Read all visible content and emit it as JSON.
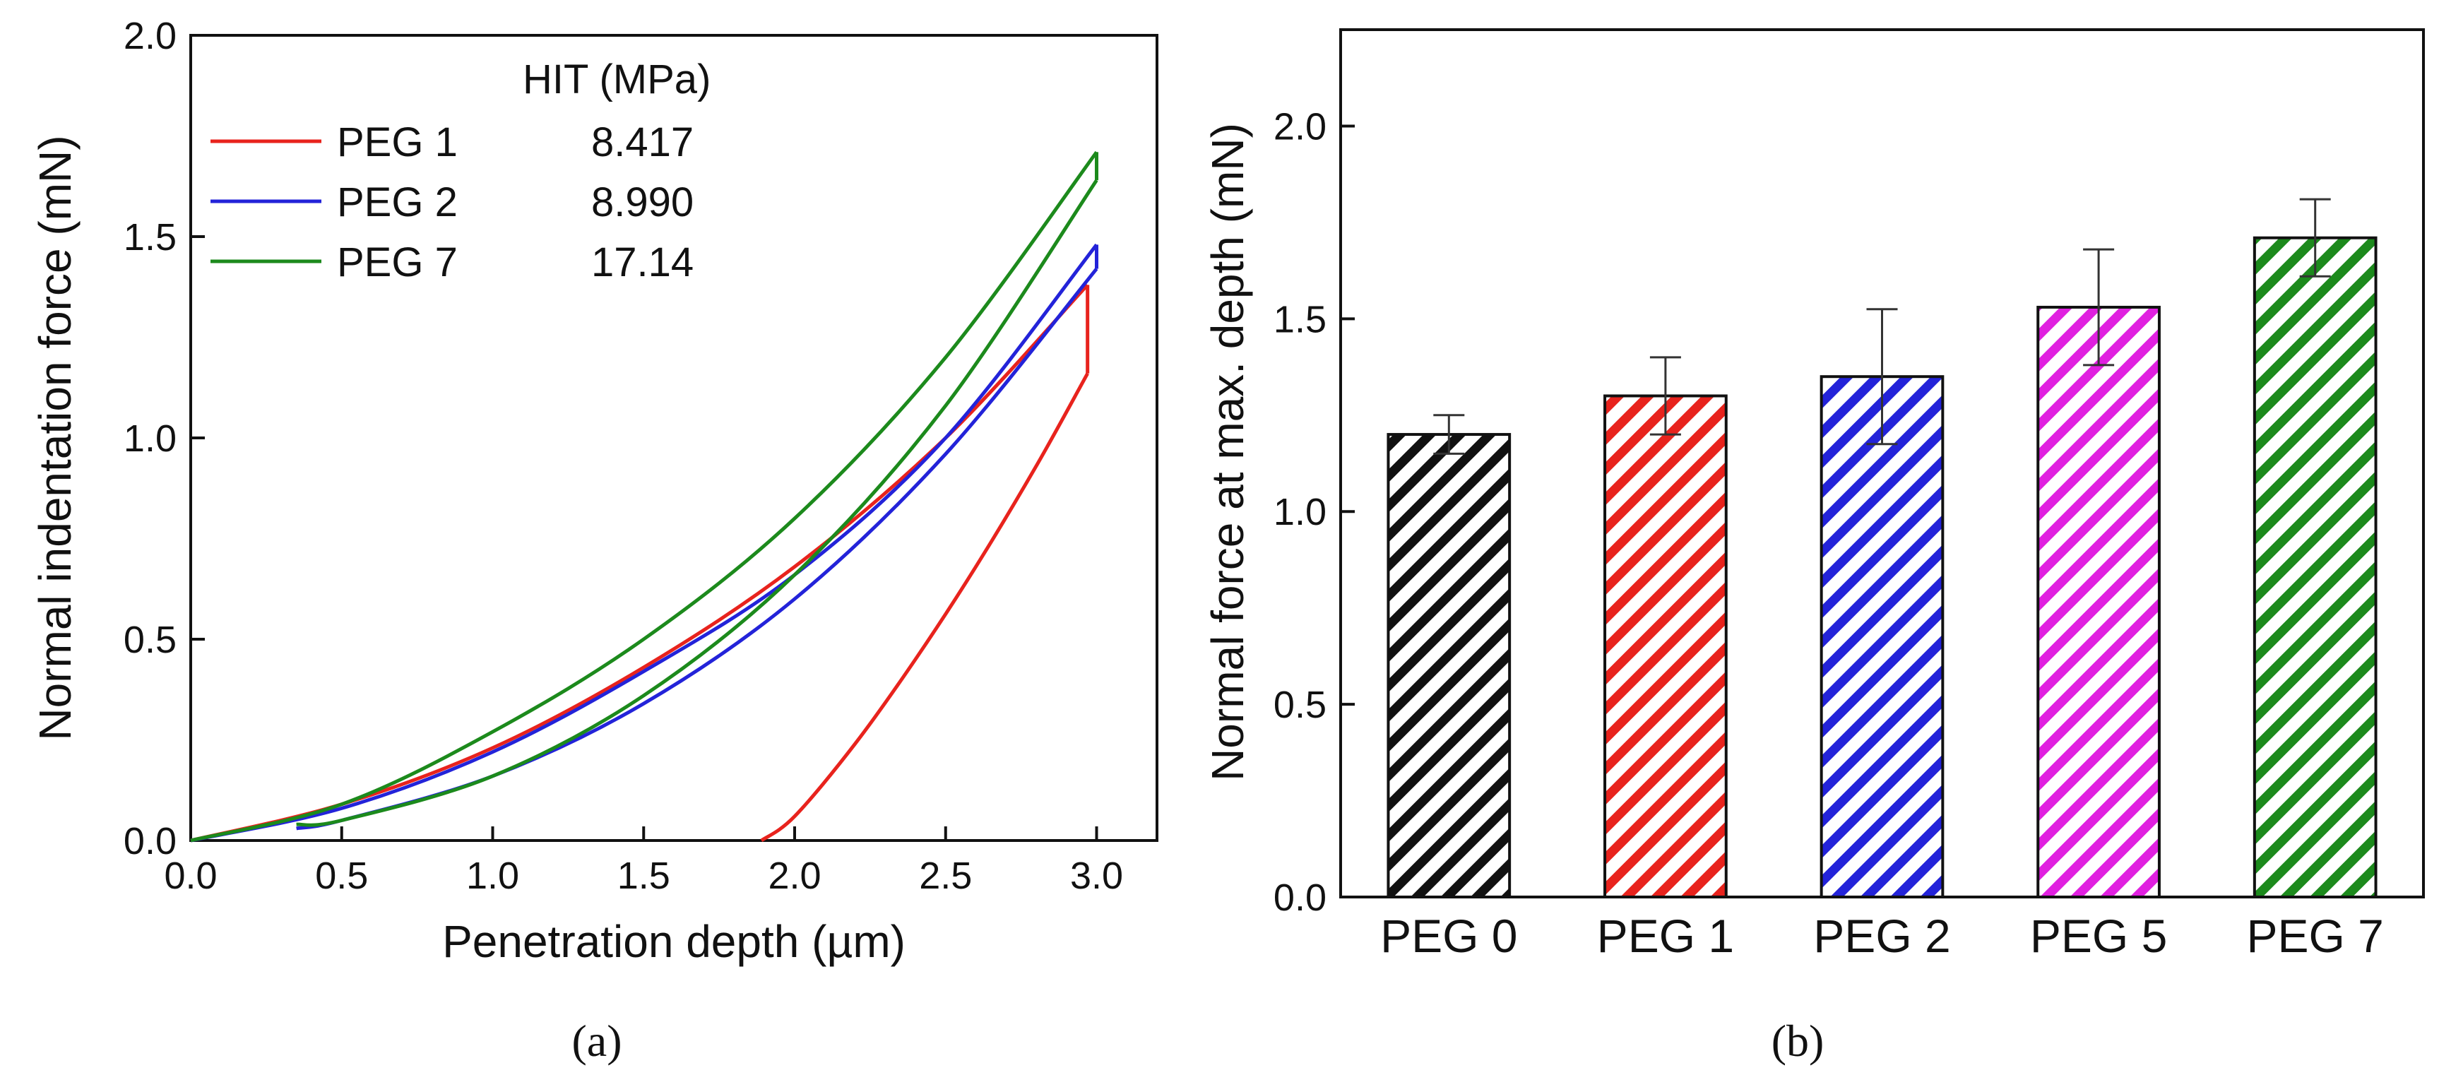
{
  "chart_data": [
    {
      "type": "line",
      "xlabel": "Penetration depth (µm)",
      "ylabel": "Normal indentation force (mN)",
      "xlim": [
        0.0,
        3.2
      ],
      "ylim": [
        0.0,
        2.0
      ],
      "xticks": [
        "0.0",
        "0.5",
        "1.0",
        "1.5",
        "2.0",
        "2.5",
        "3.0"
      ],
      "yticks": [
        "0.0",
        "0.5",
        "1.0",
        "1.5",
        "2.0"
      ],
      "legend_header": "HIT (MPa)",
      "legend_position": "top-left",
      "caption": "(a)",
      "series": [
        {
          "name": "PEG 1",
          "hit": "8.417",
          "color": "#e8231d",
          "loading_x": [
            0.0,
            0.5,
            1.0,
            1.5,
            2.0,
            2.5,
            2.97
          ],
          "loading_y": [
            0.0,
            0.09,
            0.23,
            0.43,
            0.68,
            1.0,
            1.38
          ],
          "hold_x": [
            2.97,
            2.97
          ],
          "hold_y": [
            1.38,
            1.16
          ],
          "unloading_x": [
            2.97,
            2.8,
            2.6,
            2.4,
            2.2,
            2.0,
            1.89
          ],
          "unloading_y": [
            1.16,
            0.93,
            0.68,
            0.45,
            0.24,
            0.06,
            0.0
          ]
        },
        {
          "name": "PEG 2",
          "hit": "8.990",
          "color": "#2323d9",
          "loading_x": [
            0.0,
            0.5,
            1.0,
            1.5,
            2.0,
            2.5,
            3.0
          ],
          "loading_y": [
            0.0,
            0.08,
            0.22,
            0.42,
            0.66,
            1.0,
            1.48
          ],
          "hold_x": [
            3.0,
            3.0
          ],
          "hold_y": [
            1.48,
            1.42
          ],
          "unloading_x": [
            3.0,
            2.5,
            2.0,
            1.5,
            1.0,
            0.5,
            0.35
          ],
          "unloading_y": [
            1.42,
            0.96,
            0.6,
            0.34,
            0.16,
            0.05,
            0.03
          ]
        },
        {
          "name": "PEG 7",
          "hit": "17.14",
          "color": "#1c8a1c",
          "loading_x": [
            0.0,
            0.5,
            1.0,
            1.5,
            2.0,
            2.5,
            3.0
          ],
          "loading_y": [
            0.0,
            0.09,
            0.27,
            0.5,
            0.8,
            1.2,
            1.71
          ],
          "hold_x": [
            3.0,
            3.0
          ],
          "hold_y": [
            1.71,
            1.64
          ],
          "unloading_x": [
            3.0,
            2.5,
            2.0,
            1.5,
            1.0,
            0.5,
            0.35
          ],
          "unloading_y": [
            1.64,
            1.08,
            0.66,
            0.36,
            0.16,
            0.05,
            0.04
          ]
        }
      ]
    },
    {
      "type": "bar",
      "xlabel": "",
      "ylabel": "Normal force at max. depth (mN)",
      "ylim": [
        0.0,
        2.25
      ],
      "yticks": [
        "0.0",
        "0.5",
        "1.0",
        "1.5",
        "2.0"
      ],
      "categories": [
        "PEG 0",
        "PEG 1",
        "PEG 2",
        "PEG 5",
        "PEG 7"
      ],
      "values": [
        1.2,
        1.3,
        1.35,
        1.53,
        1.71
      ],
      "errors": [
        0.05,
        0.1,
        0.175,
        0.15,
        0.1
      ],
      "colors": [
        "#111111",
        "#e8231d",
        "#2323d9",
        "#e020e0",
        "#1c8a1c"
      ],
      "fill_pattern": "diagonal-hatch",
      "caption": "(b)"
    }
  ]
}
